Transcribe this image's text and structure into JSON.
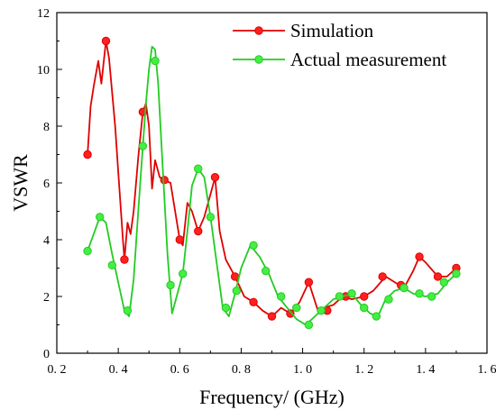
{
  "chart_data": {
    "type": "line",
    "xlabel": "Frequency/ (GHz)",
    "ylabel": "VSWR",
    "xlim": [
      0.2,
      1.6
    ],
    "ylim": [
      0,
      12
    ],
    "x_ticks": [
      0.2,
      0.4,
      0.6,
      0.8,
      1.0,
      1.2,
      1.4,
      1.6
    ],
    "x_tick_labels": [
      "0. 2",
      "0. 4",
      "0. 6",
      "0. 8",
      "1. 0",
      "1. 2",
      "1. 4",
      "1. 6"
    ],
    "y_ticks": [
      0,
      2,
      4,
      6,
      8,
      10,
      12
    ],
    "y_tick_labels": [
      "0",
      "2",
      "4",
      "6",
      "8",
      "10",
      "12"
    ],
    "grid": false,
    "legend_position": "top-right",
    "series": [
      {
        "name": "Simulation",
        "color": "#e00000",
        "marker_color": "#ff2020",
        "line": [
          [
            0.3,
            7.0
          ],
          [
            0.31,
            8.7
          ],
          [
            0.32,
            9.4
          ],
          [
            0.335,
            10.3
          ],
          [
            0.345,
            9.5
          ],
          [
            0.36,
            11.0
          ],
          [
            0.37,
            10.4
          ],
          [
            0.39,
            8.0
          ],
          [
            0.4,
            6.4
          ],
          [
            0.415,
            4.0
          ],
          [
            0.42,
            3.3
          ],
          [
            0.43,
            4.6
          ],
          [
            0.44,
            4.2
          ],
          [
            0.45,
            5.0
          ],
          [
            0.465,
            6.9
          ],
          [
            0.48,
            8.5
          ],
          [
            0.49,
            8.8
          ],
          [
            0.5,
            8.0
          ],
          [
            0.51,
            5.8
          ],
          [
            0.52,
            6.8
          ],
          [
            0.535,
            6.2
          ],
          [
            0.55,
            6.1
          ],
          [
            0.57,
            6.0
          ],
          [
            0.585,
            5.0
          ],
          [
            0.6,
            4.0
          ],
          [
            0.61,
            3.8
          ],
          [
            0.625,
            5.3
          ],
          [
            0.64,
            5.0
          ],
          [
            0.66,
            4.3
          ],
          [
            0.68,
            4.8
          ],
          [
            0.7,
            5.6
          ],
          [
            0.715,
            6.2
          ],
          [
            0.73,
            4.3
          ],
          [
            0.75,
            3.3
          ],
          [
            0.78,
            2.7
          ],
          [
            0.81,
            2.0
          ],
          [
            0.84,
            1.8
          ],
          [
            0.87,
            1.5
          ],
          [
            0.9,
            1.3
          ],
          [
            0.93,
            1.6
          ],
          [
            0.96,
            1.4
          ],
          [
            0.99,
            1.8
          ],
          [
            1.02,
            2.5
          ],
          [
            1.035,
            2.0
          ],
          [
            1.05,
            1.5
          ],
          [
            1.07,
            1.6
          ],
          [
            1.1,
            1.7
          ],
          [
            1.13,
            2.0
          ],
          [
            1.16,
            1.9
          ],
          [
            1.2,
            2.0
          ],
          [
            1.23,
            2.2
          ],
          [
            1.27,
            2.7
          ],
          [
            1.3,
            2.5
          ],
          [
            1.33,
            2.3
          ],
          [
            1.36,
            2.9
          ],
          [
            1.38,
            3.4
          ],
          [
            1.4,
            3.2
          ],
          [
            1.44,
            2.7
          ],
          [
            1.47,
            2.7
          ],
          [
            1.5,
            3.0
          ]
        ],
        "markers": [
          [
            0.3,
            7.0
          ],
          [
            0.36,
            11.0
          ],
          [
            0.42,
            3.3
          ],
          [
            0.48,
            8.5
          ],
          [
            0.55,
            6.1
          ],
          [
            0.6,
            4.0
          ],
          [
            0.66,
            4.3
          ],
          [
            0.715,
            6.2
          ],
          [
            0.78,
            2.7
          ],
          [
            0.84,
            1.8
          ],
          [
            0.9,
            1.3
          ],
          [
            0.96,
            1.4
          ],
          [
            1.02,
            2.5
          ],
          [
            1.08,
            1.5
          ],
          [
            1.14,
            2.0
          ],
          [
            1.2,
            2.0
          ],
          [
            1.26,
            2.7
          ],
          [
            1.32,
            2.4
          ],
          [
            1.38,
            3.4
          ],
          [
            1.44,
            2.7
          ],
          [
            1.5,
            3.0
          ]
        ]
      },
      {
        "name": "Actual measurement",
        "color": "#22cc22",
        "marker_color": "#44ee44",
        "line": [
          [
            0.3,
            3.6
          ],
          [
            0.32,
            4.2
          ],
          [
            0.34,
            4.8
          ],
          [
            0.36,
            4.6
          ],
          [
            0.38,
            3.5
          ],
          [
            0.4,
            2.5
          ],
          [
            0.42,
            1.5
          ],
          [
            0.435,
            1.3
          ],
          [
            0.45,
            2.6
          ],
          [
            0.465,
            5.0
          ],
          [
            0.48,
            7.3
          ],
          [
            0.49,
            8.8
          ],
          [
            0.5,
            10.0
          ],
          [
            0.51,
            10.8
          ],
          [
            0.52,
            10.7
          ],
          [
            0.53,
            9.5
          ],
          [
            0.545,
            6.5
          ],
          [
            0.56,
            3.5
          ],
          [
            0.575,
            1.4
          ],
          [
            0.59,
            2.0
          ],
          [
            0.61,
            2.8
          ],
          [
            0.625,
            4.3
          ],
          [
            0.64,
            5.9
          ],
          [
            0.66,
            6.5
          ],
          [
            0.68,
            6.2
          ],
          [
            0.7,
            4.8
          ],
          [
            0.72,
            3.2
          ],
          [
            0.74,
            1.6
          ],
          [
            0.76,
            1.3
          ],
          [
            0.78,
            2.1
          ],
          [
            0.8,
            3.0
          ],
          [
            0.83,
            3.8
          ],
          [
            0.86,
            3.4
          ],
          [
            0.89,
            2.8
          ],
          [
            0.92,
            2.0
          ],
          [
            0.95,
            1.6
          ],
          [
            0.98,
            1.2
          ],
          [
            1.01,
            1.0
          ],
          [
            1.04,
            1.3
          ],
          [
            1.07,
            1.6
          ],
          [
            1.1,
            1.9
          ],
          [
            1.13,
            2.0
          ],
          [
            1.16,
            2.1
          ],
          [
            1.19,
            1.7
          ],
          [
            1.22,
            1.4
          ],
          [
            1.245,
            1.3
          ],
          [
            1.27,
            1.9
          ],
          [
            1.3,
            2.2
          ],
          [
            1.33,
            2.3
          ],
          [
            1.36,
            2.1
          ],
          [
            1.4,
            2.0
          ],
          [
            1.44,
            2.1
          ],
          [
            1.47,
            2.5
          ],
          [
            1.5,
            2.8
          ]
        ],
        "markers": [
          [
            0.3,
            3.6
          ],
          [
            0.34,
            4.8
          ],
          [
            0.38,
            3.1
          ],
          [
            0.43,
            1.5
          ],
          [
            0.48,
            7.3
          ],
          [
            0.52,
            10.3
          ],
          [
            0.57,
            2.4
          ],
          [
            0.61,
            2.8
          ],
          [
            0.66,
            6.5
          ],
          [
            0.7,
            4.8
          ],
          [
            0.75,
            1.6
          ],
          [
            0.785,
            2.2
          ],
          [
            0.84,
            3.8
          ],
          [
            0.88,
            2.9
          ],
          [
            0.93,
            2.0
          ],
          [
            0.98,
            1.6
          ],
          [
            1.02,
            1.0
          ],
          [
            1.06,
            1.5
          ],
          [
            1.12,
            2.0
          ],
          [
            1.16,
            2.1
          ],
          [
            1.2,
            1.6
          ],
          [
            1.24,
            1.3
          ],
          [
            1.28,
            1.9
          ],
          [
            1.33,
            2.3
          ],
          [
            1.38,
            2.1
          ],
          [
            1.42,
            2.0
          ],
          [
            1.46,
            2.5
          ],
          [
            1.5,
            2.8
          ]
        ]
      }
    ]
  }
}
